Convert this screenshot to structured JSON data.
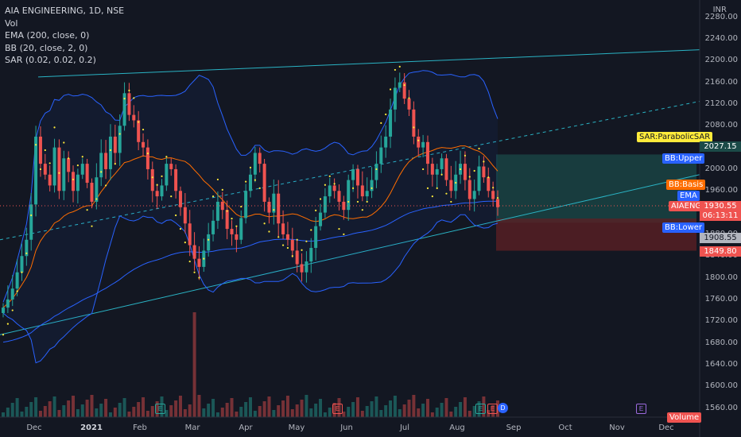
{
  "legend": {
    "symbol": "AIA ENGINEERING, 1D, NSE",
    "vol": "Vol",
    "ema": "EMA (200, close, 0)",
    "bb": "BB (20, close, 2, 0)",
    "sar": "SAR (0.02, 0.02, 0.2)"
  },
  "currency": "INR",
  "price_axis_ticks": [
    "2280.00",
    "2240.00",
    "2200.00",
    "2160.00",
    "2120.00",
    "2080.00",
    "2040.00",
    "2000.00",
    "1960.00",
    "1920.00",
    "1880.00",
    "1840.00",
    "1800.00",
    "1760.00",
    "1720.00",
    "1680.00",
    "1640.00",
    "1600.00",
    "1560.00"
  ],
  "time_axis_ticks": [
    {
      "label": "Dec",
      "bold": false
    },
    {
      "label": "2021",
      "bold": true
    },
    {
      "label": "Feb",
      "bold": false
    },
    {
      "label": "Mar",
      "bold": false
    },
    {
      "label": "Apr",
      "bold": false
    },
    {
      "label": "May",
      "bold": false
    },
    {
      "label": "Jun",
      "bold": false
    },
    {
      "label": "Jul",
      "bold": false
    },
    {
      "label": "Aug",
      "bold": false
    },
    {
      "label": "Sep",
      "bold": false
    },
    {
      "label": "Oct",
      "bold": false
    },
    {
      "label": "Nov",
      "bold": false
    },
    {
      "label": "Dec",
      "bold": false
    }
  ],
  "labels": {
    "sar": "SAR:ParabolicSAR",
    "bb_upper": "BB:Upper",
    "bb_basis": "BB:Basis",
    "ema": "EMA",
    "aiaeng": "AIAENG",
    "bb_lower": "BB:Lower",
    "volume": "Volume"
  },
  "axis_values": {
    "target": "2027.15",
    "price": "1930.55",
    "countdown": "06:13:11",
    "ema_value": "1908.55",
    "stop": "1849.80"
  },
  "events": {
    "earnings": "E",
    "dividend": "D"
  },
  "colors": {
    "background": "#131722",
    "up": "#26a69a",
    "down": "#ef5350",
    "bb_band": "#2962ff",
    "bb_basis": "#ff6d00",
    "ema": "#2962ff",
    "channel": "#2ab3c4",
    "sar": "#ffeb3b",
    "target_zone": "#1b4a48",
    "stop_zone": "#5a1f24"
  },
  "chart_data": {
    "type": "candlestick",
    "y_range": [
      1540,
      2300
    ],
    "y_axis": "right",
    "grid": false,
    "timeframe": "1D",
    "last_price": 1930.55,
    "target_price": 2027.15,
    "stop_price": 1849.8,
    "ema200_last": 1908.55,
    "closes": [
      1745,
      1760,
      1780,
      1810,
      1840,
      1870,
      1935,
      2060,
      2010,
      1990,
      1970,
      2040,
      1960,
      2020,
      1995,
      1960,
      1990,
      2010,
      1975,
      1940,
      1985,
      2030,
      2000,
      2060,
      2030,
      2080,
      2140,
      2100,
      2090,
      2050,
      2040,
      2000,
      1960,
      1950,
      1970,
      2010,
      2000,
      1960,
      1930,
      1900,
      1860,
      1835,
      1820,
      1850,
      1880,
      1905,
      1940,
      1925,
      1890,
      1880,
      1870,
      1910,
      1960,
      1990,
      2030,
      2010,
      1940,
      1920,
      1955,
      1900,
      1880,
      1870,
      1850,
      1825,
      1810,
      1830,
      1855,
      1895,
      1920,
      1950,
      1970,
      1960,
      1940,
      1925,
      1980,
      2000,
      1970,
      1950,
      1960,
      1980,
      2010,
      2040,
      2060,
      2110,
      2150,
      2160,
      2130,
      2110,
      2060,
      2040,
      2050,
      2010,
      1990,
      2000,
      2020,
      1980,
      1960,
      1990,
      2010,
      1980,
      1945,
      1960,
      2005,
      1985,
      1960,
      1945,
      1930
    ]
  }
}
